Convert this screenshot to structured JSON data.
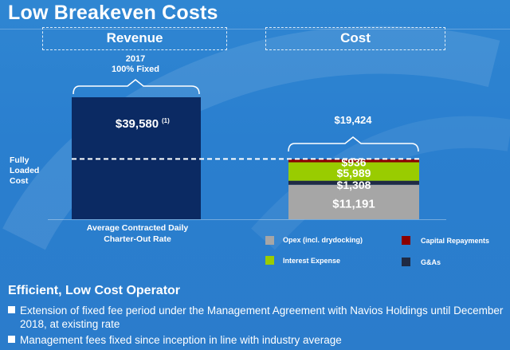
{
  "title": "Low Breakeven Costs",
  "revenue_header": "Revenue",
  "cost_header": "Cost",
  "revenue_note": {
    "line1": "2017",
    "line2": "100% Fixed"
  },
  "fully_loaded": {
    "line1": "Fully",
    "line2": "Loaded",
    "line3": "Cost"
  },
  "revenue_caption": {
    "line1": "Average Contracted Daily",
    "line2": "Charter-Out Rate"
  },
  "colors": {
    "revenue": "#0b2a63",
    "opex": "#a6a6a6",
    "g_and_as": "#1f2a44",
    "interest": "#99cc00",
    "capital": "#8b0000"
  },
  "chart_data": {
    "type": "bar",
    "revenue": {
      "value": 39580,
      "label": "$39,580",
      "footnote": "(1)"
    },
    "cost_total": {
      "value": 19424,
      "label": "$19,424"
    },
    "cost_stack": [
      {
        "name": "Opex (incl. drydocking)",
        "value": 11191,
        "label": "$11,191",
        "color": "#a6a6a6"
      },
      {
        "name": "G&As",
        "value": 1308,
        "label": "$1,308",
        "color": "#1f2a44"
      },
      {
        "name": "Interest Expense",
        "value": 5989,
        "label": "$5,989",
        "color": "#99cc00"
      },
      {
        "name": "Capital Repayments",
        "value": 936,
        "label": "$936",
        "color": "#8b0000"
      }
    ],
    "breakeven_line": 19424
  },
  "legend": [
    {
      "name": "Opex (incl. drydocking)",
      "color": "#a6a6a6"
    },
    {
      "name": "Capital Repayments",
      "color": "#8b0000"
    },
    {
      "name": "Interest Expense",
      "color": "#99cc00"
    },
    {
      "name": "G&As",
      "color": "#1f2a44"
    }
  ],
  "section": {
    "title": "Efficient, Low Cost Operator",
    "bullets": [
      "Extension of fixed fee period under the Management Agreement with Navios Holdings until December",
      "2018, at existing rate",
      "Management fees fixed since inception in line with industry average"
    ]
  }
}
